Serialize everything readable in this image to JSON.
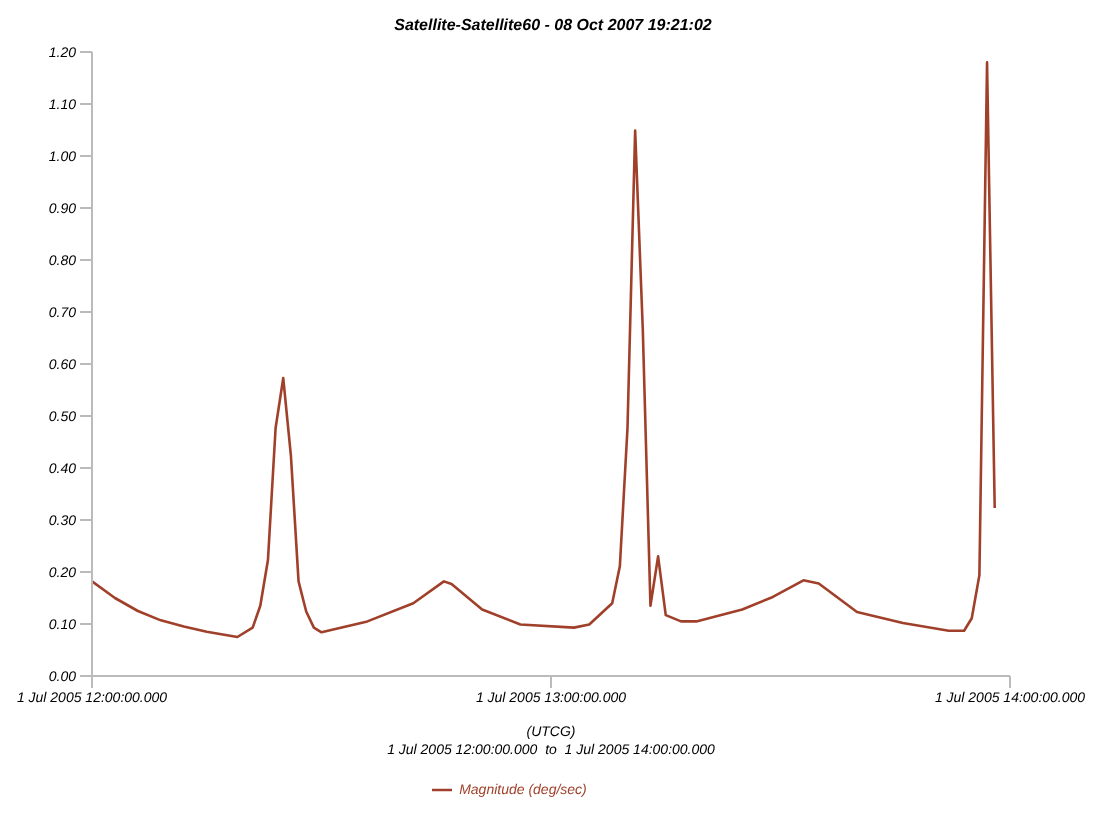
{
  "chart_data": {
    "type": "line",
    "title": "Satellite-Satellite60 - 08 Oct 2007 19:21:02",
    "xlabel": "(UTCG)",
    "annotations": [
      "1 Jul 2005 12:00:00.000  to  1 Jul 2005 14:00:00.000"
    ],
    "xlim": [
      "2005-07-01T12:00",
      "2005-07-01T14:00"
    ],
    "xticks": [
      {
        "value": "2005-07-01T12:00",
        "label": "1 Jul 2005 12:00:00.000"
      },
      {
        "value": "2005-07-01T13:00",
        "label": "1 Jul 2005 13:00:00.000"
      },
      {
        "value": "2005-07-01T14:00",
        "label": "1 Jul 2005 14:00:00.000"
      }
    ],
    "ylim": [
      0,
      1.2
    ],
    "yticks": [
      {
        "value": 0,
        "label": "0.00"
      },
      {
        "value": 0.1,
        "label": "0.10"
      },
      {
        "value": 0.2,
        "label": "0.20"
      },
      {
        "value": 0.3,
        "label": "0.30"
      },
      {
        "value": 0.4,
        "label": "0.40"
      },
      {
        "value": 0.5,
        "label": "0.50"
      },
      {
        "value": 0.6,
        "label": "0.60"
      },
      {
        "value": 0.7,
        "label": "0.70"
      },
      {
        "value": 0.8,
        "label": "0.80"
      },
      {
        "value": 0.9,
        "label": "0.90"
      },
      {
        "value": 1,
        "label": "1.00"
      },
      {
        "value": 1.1,
        "label": "1.10"
      },
      {
        "value": 1.2,
        "label": "1.20"
      }
    ],
    "grid": false,
    "legend": "bottom",
    "marker": "none",
    "line_style": "solid",
    "series": [
      {
        "name": "Magnitude (deg/sec)",
        "color": "#a0402a",
        "x": [
          "2005-07-01T12:00",
          "2005-07-01T12:03",
          "2005-07-01T12:06",
          "2005-07-01T12:09",
          "2005-07-01T12:12",
          "2005-07-01T12:15",
          "2005-07-01T12:19",
          "2005-07-01T12:21",
          "2005-07-01T12:22",
          "2005-07-01T12:23",
          "2005-07-01T12:24",
          "2005-07-01T12:25",
          "2005-07-01T12:26",
          "2005-07-01T12:27",
          "2005-07-01T12:28",
          "2005-07-01T12:29",
          "2005-07-01T12:30",
          "2005-07-01T12:36",
          "2005-07-01T12:42",
          "2005-07-01T12:46",
          "2005-07-01T12:47",
          "2005-07-01T12:51",
          "2005-07-01T12:56",
          "2005-07-01T13:03",
          "2005-07-01T13:05",
          "2005-07-01T13:08",
          "2005-07-01T13:09",
          "2005-07-01T13:10",
          "2005-07-01T13:11",
          "2005-07-01T13:12",
          "2005-07-01T13:13",
          "2005-07-01T13:14",
          "2005-07-01T13:15",
          "2005-07-01T13:17",
          "2005-07-01T13:19",
          "2005-07-01T13:25",
          "2005-07-01T13:29",
          "2005-07-01T13:33",
          "2005-07-01T13:35",
          "2005-07-01T13:40",
          "2005-07-01T13:46",
          "2005-07-01T13:52",
          "2005-07-01T13:54",
          "2005-07-01T13:55",
          "2005-07-01T13:56",
          "2005-07-01T13:57",
          "2005-07-01T13:58"
        ],
        "values": [
          0.182,
          0.15,
          0.125,
          0.107,
          0.095,
          0.085,
          0.075,
          0.093,
          0.135,
          0.223,
          0.477,
          0.573,
          0.424,
          0.182,
          0.124,
          0.093,
          0.084,
          0.105,
          0.14,
          0.182,
          0.177,
          0.128,
          0.099,
          0.093,
          0.099,
          0.14,
          0.211,
          0.477,
          1.049,
          0.666,
          0.135,
          0.23,
          0.117,
          0.105,
          0.105,
          0.128,
          0.152,
          0.184,
          0.178,
          0.123,
          0.102,
          0.087,
          0.087,
          0.111,
          0.194,
          1.18,
          0.323
        ]
      }
    ]
  }
}
